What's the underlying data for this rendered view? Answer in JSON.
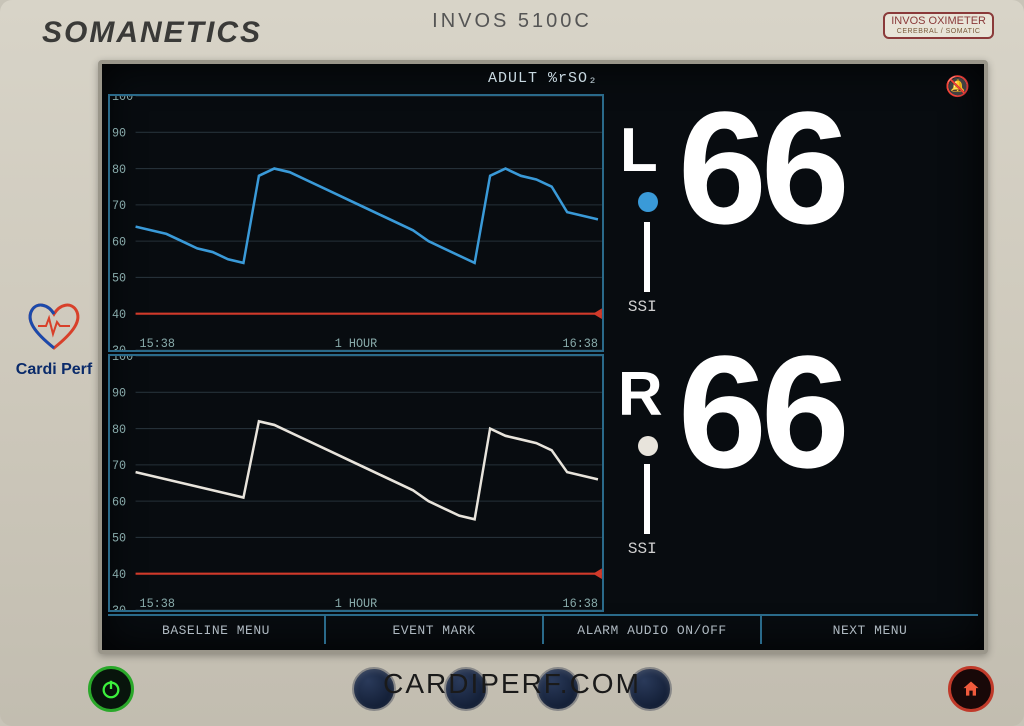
{
  "device": {
    "brand": "SOMANETICS",
    "model": "INVOS 5100C",
    "oximeter_label": "INVOS OXIMETER",
    "oximeter_sub": "CEREBRAL / SOMATIC"
  },
  "screen": {
    "title": "ADULT %rSO₂",
    "background_color": "#080c10",
    "chart_border_color": "#2a6a8a",
    "text_color": "#c8d8e0"
  },
  "charts": {
    "ylim": [
      30,
      100
    ],
    "yticks": [
      30,
      40,
      50,
      60,
      70,
      80,
      90,
      100
    ],
    "xticks_left": "15:38",
    "xticks_center": "1 HOUR",
    "xticks_right": "16:38",
    "threshold": 40,
    "threshold_color": "#d03a2a",
    "grid_color": "#253038",
    "left": {
      "line_color": "#3a9ad8",
      "data": [
        64,
        63,
        62,
        60,
        58,
        57,
        55,
        54,
        78,
        80,
        79,
        77,
        75,
        73,
        71,
        69,
        67,
        65,
        63,
        60,
        58,
        56,
        54,
        78,
        80,
        78,
        77,
        75,
        68,
        67,
        66
      ]
    },
    "right": {
      "line_color": "#e8e4dc",
      "data": [
        68,
        67,
        66,
        65,
        64,
        63,
        62,
        61,
        82,
        81,
        79,
        77,
        75,
        73,
        71,
        69,
        67,
        65,
        63,
        60,
        58,
        56,
        55,
        80,
        78,
        77,
        76,
        74,
        68,
        67,
        66
      ]
    }
  },
  "readings": {
    "left": {
      "label": "L",
      "value": "66",
      "dot_color": "#3a9ad8",
      "ssi": "SSI"
    },
    "right": {
      "label": "R",
      "value": "66",
      "dot_color": "#e8e4dc",
      "ssi": "SSI"
    }
  },
  "menu": {
    "items": [
      "BASELINE MENU",
      "EVENT MARK",
      "ALARM AUDIO ON/OFF",
      "NEXT MENU"
    ]
  },
  "watermark": {
    "logo_text": "Cardi Perf",
    "url": "CARDIPERF.COM"
  }
}
